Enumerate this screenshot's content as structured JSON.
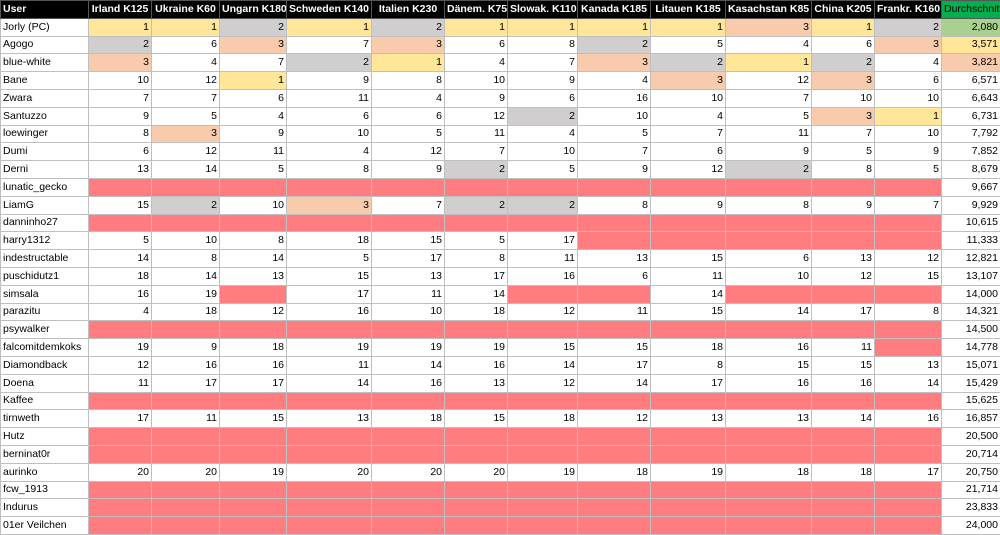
{
  "colors": {
    "gold": "#ffe699",
    "silver": "#d0cece",
    "bronze": "#f8cbad",
    "missing": "#ff7c80",
    "header_bg": "#000000",
    "header_accent": "#00b050"
  },
  "header": {
    "user": "User",
    "races": [
      "Irland K125",
      "Ukraine K60",
      "Ungarn K180",
      "Schweden K140",
      "Italien K230",
      "Dänem. K75",
      "Slowak. K110",
      "Kanada K185",
      "Litauen K185",
      "Kasachstan K85",
      "China K205",
      "Frankr. K160"
    ],
    "average": "Durchschnitt"
  },
  "rows": [
    {
      "name": "Jorly (PC)",
      "results": [
        1,
        1,
        2,
        1,
        2,
        1,
        1,
        1,
        1,
        3,
        1,
        2
      ],
      "average": "2,080",
      "avg_highlight": "gold"
    },
    {
      "name": "Agogo",
      "results": [
        2,
        6,
        3,
        7,
        3,
        6,
        8,
        2,
        5,
        4,
        6,
        3
      ],
      "average": "3,571",
      "avg_highlight": "silver"
    },
    {
      "name": "blue-white",
      "results": [
        3,
        4,
        7,
        2,
        1,
        4,
        7,
        3,
        2,
        1,
        2,
        4
      ],
      "average": "3,821",
      "avg_highlight": "bronze"
    },
    {
      "name": "Bane",
      "results": [
        10,
        12,
        1,
        9,
        8,
        10,
        9,
        4,
        3,
        12,
        3,
        6
      ],
      "average": "6,571"
    },
    {
      "name": "Zwara",
      "results": [
        7,
        7,
        6,
        11,
        4,
        9,
        6,
        16,
        10,
        7,
        10,
        10
      ],
      "average": "6,643"
    },
    {
      "name": "Santuzzo",
      "results": [
        9,
        5,
        4,
        6,
        6,
        12,
        2,
        10,
        4,
        5,
        3,
        1
      ],
      "average": "6,731"
    },
    {
      "name": "loewinger",
      "results": [
        8,
        3,
        9,
        10,
        5,
        11,
        4,
        5,
        7,
        11,
        7,
        10
      ],
      "average": "7,792"
    },
    {
      "name": "Dumi",
      "results": [
        6,
        12,
        11,
        4,
        12,
        7,
        10,
        7,
        6,
        9,
        5,
        9
      ],
      "average": "7,852"
    },
    {
      "name": "Derni",
      "results": [
        13,
        14,
        5,
        8,
        9,
        2,
        5,
        9,
        12,
        2,
        8,
        5
      ],
      "average": "8,679"
    },
    {
      "name": "lunatic_gecko",
      "results": [
        null,
        null,
        null,
        null,
        null,
        null,
        null,
        null,
        null,
        null,
        null,
        null
      ],
      "average": "9,667"
    },
    {
      "name": "LiamG",
      "results": [
        15,
        2,
        10,
        3,
        7,
        2,
        2,
        8,
        9,
        8,
        9,
        7
      ],
      "average": "9,929"
    },
    {
      "name": "danninho27",
      "results": [
        null,
        null,
        null,
        null,
        null,
        null,
        null,
        null,
        null,
        null,
        null,
        null
      ],
      "average": "10,615"
    },
    {
      "name": "harry1312",
      "results": [
        5,
        10,
        8,
        18,
        15,
        5,
        17,
        null,
        null,
        null,
        null,
        null
      ],
      "average": "11,333"
    },
    {
      "name": "indestructable",
      "results": [
        14,
        8,
        14,
        5,
        17,
        8,
        11,
        13,
        15,
        6,
        13,
        12
      ],
      "average": "12,821"
    },
    {
      "name": "puschidutz1",
      "results": [
        18,
        14,
        13,
        15,
        13,
        17,
        16,
        6,
        11,
        10,
        12,
        15
      ],
      "average": "13,107"
    },
    {
      "name": "simsala",
      "results": [
        16,
        19,
        null,
        17,
        11,
        14,
        null,
        null,
        14,
        null,
        null,
        null
      ],
      "average": "14,000"
    },
    {
      "name": "parazitu",
      "results": [
        4,
        18,
        12,
        16,
        10,
        18,
        12,
        11,
        15,
        14,
        17,
        8
      ],
      "average": "14,321"
    },
    {
      "name": "psywalker",
      "results": [
        null,
        null,
        null,
        null,
        null,
        null,
        null,
        null,
        null,
        null,
        null,
        null
      ],
      "average": "14,500"
    },
    {
      "name": "falcomitdemkoks",
      "results": [
        19,
        9,
        18,
        19,
        19,
        19,
        15,
        15,
        18,
        16,
        11,
        null
      ],
      "average": "14,778"
    },
    {
      "name": "Diamondback",
      "results": [
        12,
        16,
        16,
        11,
        14,
        16,
        14,
        17,
        8,
        15,
        15,
        13
      ],
      "average": "15,071"
    },
    {
      "name": "Doena",
      "results": [
        11,
        17,
        17,
        14,
        16,
        13,
        12,
        14,
        17,
        16,
        16,
        14
      ],
      "average": "15,429"
    },
    {
      "name": "Kaffee",
      "results": [
        null,
        null,
        null,
        null,
        null,
        null,
        null,
        null,
        null,
        null,
        null,
        null
      ],
      "average": "15,625"
    },
    {
      "name": "tirnweth",
      "results": [
        17,
        11,
        15,
        13,
        18,
        15,
        18,
        12,
        13,
        13,
        14,
        16
      ],
      "average": "16,857"
    },
    {
      "name": "Hutz",
      "results": [
        null,
        null,
        null,
        null,
        null,
        null,
        null,
        null,
        null,
        null,
        null,
        null
      ],
      "average": "20,500"
    },
    {
      "name": "berninat0r",
      "results": [
        null,
        null,
        null,
        null,
        null,
        null,
        null,
        null,
        null,
        null,
        null,
        null
      ],
      "average": "20,714"
    },
    {
      "name": "aurinko",
      "results": [
        20,
        20,
        19,
        20,
        20,
        20,
        19,
        18,
        19,
        18,
        18,
        17
      ],
      "average": "20,750"
    },
    {
      "name": "fcw_1913",
      "results": [
        null,
        null,
        null,
        null,
        null,
        null,
        null,
        null,
        null,
        null,
        null,
        null
      ],
      "average": "21,714"
    },
    {
      "name": "Indurus",
      "results": [
        null,
        null,
        null,
        null,
        null,
        null,
        null,
        null,
        null,
        null,
        null,
        null
      ],
      "average": "23,833"
    },
    {
      "name": "01er Veilchen",
      "results": [
        null,
        null,
        null,
        null,
        null,
        null,
        null,
        null,
        null,
        null,
        null,
        null
      ],
      "average": "24,000"
    }
  ]
}
